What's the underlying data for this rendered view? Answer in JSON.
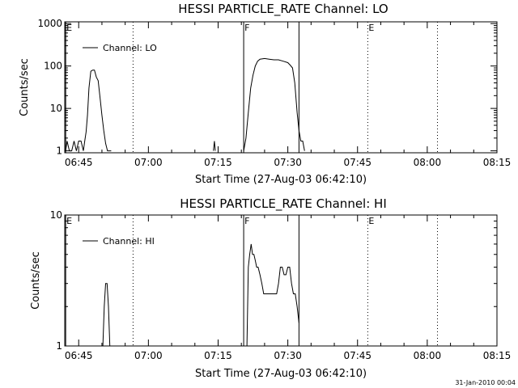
{
  "footer_timestamp": "31-Jan-2010 00:04",
  "chart_data": [
    {
      "type": "line",
      "title": "HESSI PARTICLE_RATE Channel: LO",
      "xlabel": "Start Time (27-Aug-03 06:42:10)",
      "ylabel": "Counts/sec",
      "yscale": "log",
      "ylim": [
        0.9,
        1100
      ],
      "yticks": [
        1,
        10,
        100,
        1000
      ],
      "ytick_labels": [
        "1",
        "10",
        "100",
        "1000"
      ],
      "xlim_min": [
        402,
        495
      ],
      "xticks_min": [
        405,
        420,
        435,
        450,
        465,
        480,
        495
      ],
      "xtick_labels": [
        "06:45",
        "07:00",
        "07:15",
        "07:30",
        "07:45",
        "08:00",
        "08:15"
      ],
      "legend": "Channel: LO",
      "legend_position": "top-left",
      "markers": [
        {
          "label": "E",
          "x_min": 402.2,
          "style": "solid"
        },
        {
          "label": "",
          "x_min": 416.7,
          "style": "dotted"
        },
        {
          "label": "F",
          "x_min": 440.5,
          "style": "solid"
        },
        {
          "label": "",
          "x_min": 452.4,
          "style": "solid"
        },
        {
          "label": "E",
          "x_min": 467.2,
          "style": "dotted"
        },
        {
          "label": "",
          "x_min": 482.2,
          "style": "dotted"
        }
      ],
      "segments": [
        {
          "x_min": [
            402.2,
            402.5,
            403.0,
            403.5,
            404.0,
            404.5,
            405.0,
            405.5,
            406.0,
            406.3,
            406.6,
            406.9,
            407.2,
            407.6,
            408.0,
            408.4,
            408.8,
            409.2,
            409.6,
            410.0,
            410.4,
            410.8,
            411.2,
            411.6,
            412.0
          ],
          "values": [
            1,
            1.7,
            1,
            1,
            1.7,
            1,
            1.7,
            1.7,
            1,
            1.7,
            2.8,
            7,
            30,
            75,
            80,
            80,
            55,
            45,
            18,
            7,
            3,
            1.5,
            1,
            1,
            1
          ]
        },
        {
          "x_min": [
            434.0,
            434.2,
            434.4
          ],
          "values": [
            1,
            1.7,
            1
          ]
        },
        {
          "x_min": [
            440.5,
            441.0,
            441.5,
            442.0,
            442.5,
            443.0,
            443.5,
            444.0,
            445.0,
            446.0,
            447.0,
            448.0,
            449.0,
            450.0,
            450.5,
            451.0,
            451.5,
            452.0,
            452.4,
            452.8,
            453.2,
            453.6
          ],
          "values": [
            1,
            2,
            8,
            30,
            60,
            100,
            130,
            145,
            150,
            145,
            140,
            140,
            130,
            120,
            105,
            90,
            40,
            8,
            3,
            1.7,
            1.7,
            1
          ]
        }
      ]
    },
    {
      "type": "line",
      "title": "HESSI PARTICLE_RATE Channel: HI",
      "xlabel": "Start Time (27-Aug-03 06:42:10)",
      "ylabel": "Counts/sec",
      "yscale": "log",
      "ylim": [
        1,
        10
      ],
      "yticks": [
        1,
        10
      ],
      "ytick_labels": [
        "1",
        "10"
      ],
      "xlim_min": [
        402,
        495
      ],
      "xticks_min": [
        405,
        420,
        435,
        450,
        465,
        480,
        495
      ],
      "xtick_labels": [
        "06:45",
        "07:00",
        "07:15",
        "07:30",
        "07:45",
        "08:00",
        "08:15"
      ],
      "legend": "Channel: HI",
      "legend_position": "top-left",
      "markers": [
        {
          "label": "E",
          "x_min": 402.2,
          "style": "solid"
        },
        {
          "label": "",
          "x_min": 416.7,
          "style": "dotted"
        },
        {
          "label": "F",
          "x_min": 440.5,
          "style": "solid"
        },
        {
          "label": "",
          "x_min": 452.4,
          "style": "solid"
        },
        {
          "label": "E",
          "x_min": 467.2,
          "style": "dotted"
        },
        {
          "label": "",
          "x_min": 482.2,
          "style": "dotted"
        }
      ],
      "segments": [
        {
          "x_min": [
            410.2,
            410.5,
            410.8,
            411.1,
            411.4,
            411.7,
            412.0
          ],
          "values": [
            1,
            2,
            3,
            3,
            2,
            1,
            1
          ]
        },
        {
          "x_min": [
            441.2,
            441.5,
            441.8,
            442.1,
            442.4,
            442.7,
            443.0,
            443.3,
            443.6,
            444.0,
            444.4,
            444.8,
            445.2,
            446.0,
            447.0,
            447.6,
            448.0,
            448.4,
            448.8,
            449.2,
            449.6,
            450.0,
            450.4,
            450.8,
            451.2,
            451.6,
            452.0,
            452.4
          ],
          "values": [
            1,
            4,
            5,
            6,
            5,
            5,
            4.5,
            4,
            4,
            3.5,
            3,
            2.5,
            2.5,
            2.5,
            2.5,
            2.5,
            3,
            4,
            4,
            3.5,
            3.5,
            4,
            4,
            3,
            2.5,
            2.5,
            2,
            1.5
          ]
        }
      ]
    }
  ]
}
